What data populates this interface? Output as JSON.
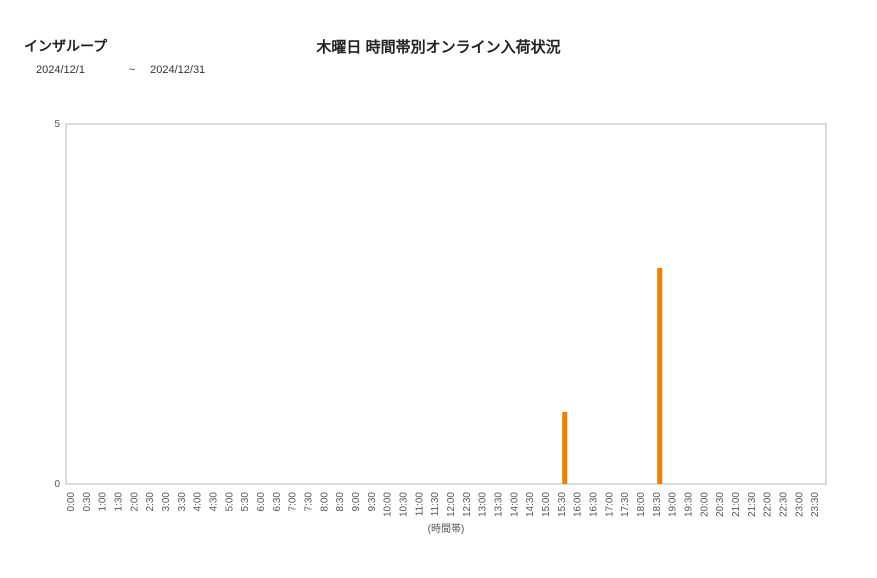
{
  "header": {
    "company_name": "インザループ",
    "chart_title": "木曜日 時間帯別オンライン入荷状況",
    "date_start": "2024/12/1",
    "date_sep": "~",
    "date_end": "2024/12/31"
  },
  "chart": {
    "type": "bar",
    "background_color": "#ffffff",
    "plot_border_color": "#b8b8b8",
    "bar_color": "#f08000",
    "title_fontsize": 15,
    "label_fontsize": 10,
    "xlabel": "(時間帯)",
    "ylim": [
      0,
      5
    ],
    "yticks": [
      0,
      5
    ],
    "categories": [
      "0:00",
      "0:30",
      "1:00",
      "1:30",
      "2:00",
      "2:30",
      "3:00",
      "3:30",
      "4:00",
      "4:30",
      "5:00",
      "5:30",
      "6:00",
      "6:30",
      "7:00",
      "7:30",
      "8:00",
      "8:30",
      "9:00",
      "9:30",
      "10:00",
      "10:30",
      "11:00",
      "11:30",
      "12:00",
      "12:30",
      "13:00",
      "13:30",
      "14:00",
      "14:30",
      "15:00",
      "15:30",
      "16:00",
      "16:30",
      "17:00",
      "17:30",
      "18:00",
      "18:30",
      "19:00",
      "19:30",
      "20:00",
      "20:30",
      "21:00",
      "21:30",
      "22:00",
      "22:30",
      "23:00",
      "23:30"
    ],
    "values": [
      0,
      0,
      0,
      0,
      0,
      0,
      0,
      0,
      0,
      0,
      0,
      0,
      0,
      0,
      0,
      0,
      0,
      0,
      0,
      0,
      0,
      0,
      0,
      0,
      0,
      0,
      0,
      0,
      0,
      0,
      0,
      1,
      0,
      0,
      0,
      0,
      0,
      3,
      0,
      0,
      0,
      0,
      0,
      0,
      0,
      0,
      0,
      0
    ],
    "bar_rel_width": 0.32
  }
}
